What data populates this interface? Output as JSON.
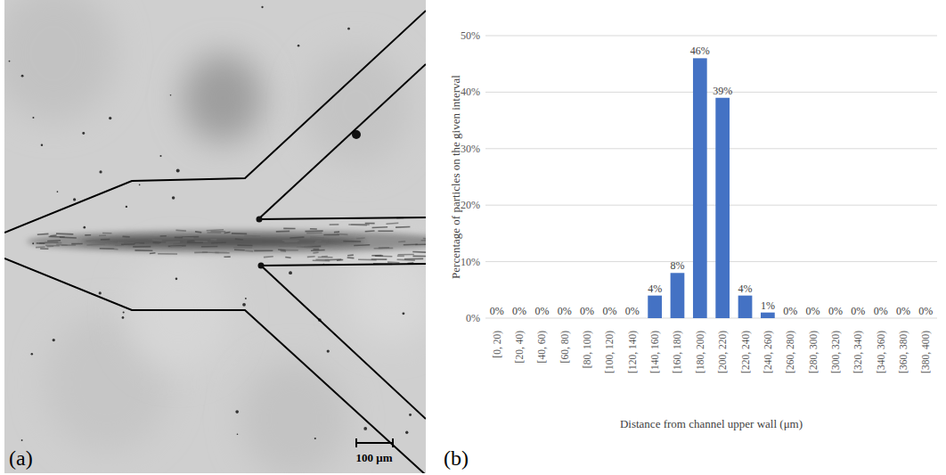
{
  "chart_data": {
    "type": "bar",
    "panel_label": "(b)",
    "x_label": "Distance from channel upper wall (μm)",
    "y_label": "Percentage of particles on the given interval",
    "categories": [
      "[0, 20)",
      "[20, 40)",
      "[40, 60)",
      "[60, 80)",
      "[80, 100)",
      "[100, 120)",
      "[120, 140)",
      "[140, 160)",
      "[160, 180)",
      "[180, 200)",
      "[200, 220)",
      "[220, 240)",
      "[240, 260)",
      "[260, 280)",
      "[280, 300)",
      "[300, 320)",
      "[320, 340)",
      "[340, 360)",
      "[360, 380)",
      "[380, 400)"
    ],
    "values": [
      0,
      0,
      0,
      0,
      0,
      0,
      0,
      4,
      8,
      46,
      39,
      4,
      1,
      0,
      0,
      0,
      0,
      0,
      0,
      0
    ],
    "value_labels": [
      "0%",
      "0%",
      "0%",
      "0%",
      "0%",
      "0%",
      "0%",
      "4%",
      "8%",
      "46%",
      "39%",
      "4%",
      "1%",
      "0%",
      "0%",
      "0%",
      "0%",
      "0%",
      "0%",
      "0%"
    ],
    "color": "#4472c4",
    "ylim": [
      0,
      50
    ],
    "yticks": [
      {
        "value": 0,
        "label": "0%"
      },
      {
        "value": 10,
        "label": "10%"
      },
      {
        "value": 20,
        "label": "20%"
      },
      {
        "value": 30,
        "label": "30%"
      },
      {
        "value": 40,
        "label": "40%"
      },
      {
        "value": 50,
        "label": "50%"
      }
    ],
    "grid": true,
    "data_labels": true
  },
  "image_panel": {
    "panel_label": "(a)",
    "scale_bar_label": "100 μm"
  }
}
